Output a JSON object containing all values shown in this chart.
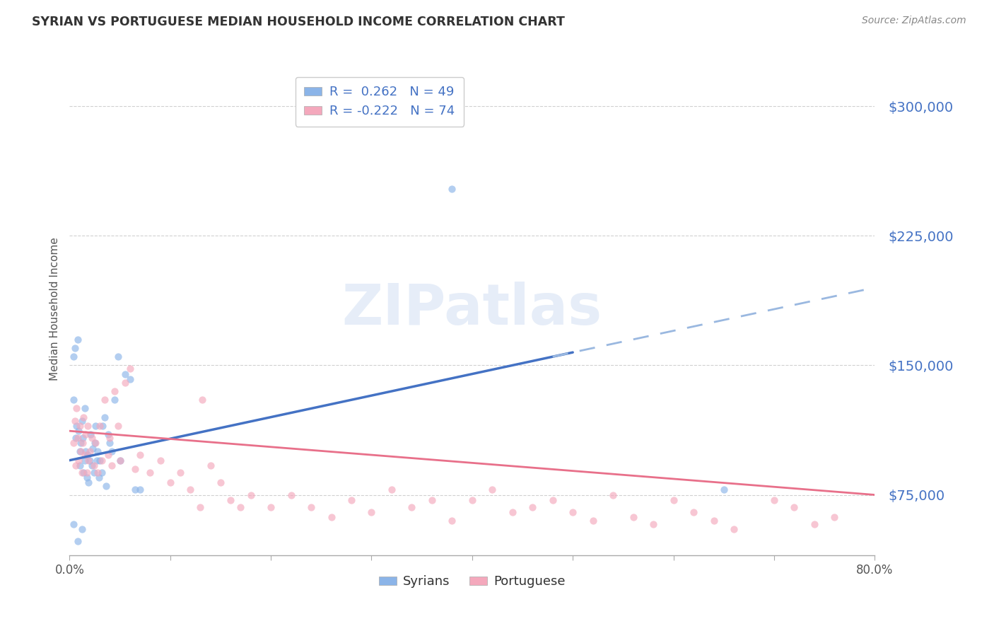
{
  "title": "SYRIAN VS PORTUGUESE MEDIAN HOUSEHOLD INCOME CORRELATION CHART",
  "source": "Source: ZipAtlas.com",
  "ylabel": "Median Household Income",
  "xlim": [
    0.0,
    0.8
  ],
  "ylim": [
    40000,
    325000
  ],
  "yticks": [
    75000,
    150000,
    225000,
    300000
  ],
  "ytick_labels": [
    "$75,000",
    "$150,000",
    "$225,000",
    "$300,000"
  ],
  "xticks": [
    0.0,
    0.1,
    0.2,
    0.3,
    0.4,
    0.5,
    0.6,
    0.7,
    0.8
  ],
  "background_color": "#ffffff",
  "grid_color": "#cccccc",
  "watermark": "ZIPatlas",
  "watermark_color": "#c8d8f0",
  "syrians_color": "#8bb4e8",
  "portuguese_color": "#f4a8bc",
  "syrian_line_color": "#4472c4",
  "portuguese_line_color": "#e8708a",
  "dashed_line_color": "#9ab8e0",
  "legend_syrian_label": "R =  0.262   N = 49",
  "legend_portuguese_label": "R = -0.222   N = 74",
  "legend_bottom_syrian": "Syrians",
  "legend_bottom_portuguese": "Portuguese",
  "title_color": "#333333",
  "tick_label_color": "#4472c4",
  "dot_size": 55,
  "dot_alpha": 0.65,
  "syrian_trend_x0": 0.0,
  "syrian_trend_y0": 95000,
  "syrian_trend_x1": 0.8,
  "syrian_trend_y1": 195000,
  "portuguese_trend_x0": 0.0,
  "portuguese_trend_y0": 112000,
  "portuguese_trend_x1": 0.8,
  "portuguese_trend_y1": 75000,
  "syrians_x": [
    0.004,
    0.004,
    0.005,
    0.006,
    0.007,
    0.008,
    0.009,
    0.01,
    0.01,
    0.011,
    0.012,
    0.013,
    0.014,
    0.015,
    0.015,
    0.016,
    0.017,
    0.018,
    0.019,
    0.02,
    0.021,
    0.022,
    0.023,
    0.024,
    0.025,
    0.026,
    0.027,
    0.028,
    0.029,
    0.03,
    0.032,
    0.033,
    0.035,
    0.036,
    0.038,
    0.04,
    0.042,
    0.045,
    0.048,
    0.05,
    0.055,
    0.06,
    0.065,
    0.07,
    0.004,
    0.008,
    0.012,
    0.38,
    0.65
  ],
  "syrians_y": [
    155000,
    130000,
    160000,
    108000,
    115000,
    165000,
    112000,
    100000,
    92000,
    105000,
    118000,
    108000,
    88000,
    125000,
    95000,
    100000,
    85000,
    98000,
    82000,
    95000,
    110000,
    92000,
    102000,
    88000,
    105000,
    115000,
    95000,
    100000,
    85000,
    95000,
    88000,
    115000,
    120000,
    80000,
    110000,
    105000,
    100000,
    130000,
    155000,
    95000,
    145000,
    142000,
    78000,
    78000,
    58000,
    48000,
    55000,
    252000,
    78000
  ],
  "portuguese_x": [
    0.004,
    0.005,
    0.006,
    0.007,
    0.008,
    0.009,
    0.01,
    0.011,
    0.012,
    0.013,
    0.014,
    0.015,
    0.016,
    0.017,
    0.018,
    0.019,
    0.02,
    0.022,
    0.024,
    0.026,
    0.028,
    0.03,
    0.032,
    0.035,
    0.038,
    0.04,
    0.042,
    0.045,
    0.048,
    0.05,
    0.055,
    0.06,
    0.065,
    0.07,
    0.08,
    0.09,
    0.1,
    0.11,
    0.12,
    0.13,
    0.14,
    0.15,
    0.16,
    0.17,
    0.18,
    0.2,
    0.22,
    0.24,
    0.26,
    0.28,
    0.3,
    0.32,
    0.34,
    0.36,
    0.38,
    0.4,
    0.42,
    0.44,
    0.46,
    0.48,
    0.5,
    0.52,
    0.54,
    0.56,
    0.58,
    0.6,
    0.62,
    0.64,
    0.66,
    0.7,
    0.72,
    0.74,
    0.76,
    0.132
  ],
  "portuguese_y": [
    105000,
    118000,
    92000,
    125000,
    108000,
    95000,
    115000,
    100000,
    88000,
    105000,
    120000,
    98000,
    110000,
    88000,
    115000,
    95000,
    100000,
    108000,
    92000,
    105000,
    88000,
    115000,
    95000,
    130000,
    98000,
    108000,
    92000,
    135000,
    115000,
    95000,
    140000,
    148000,
    90000,
    98000,
    88000,
    95000,
    82000,
    88000,
    78000,
    68000,
    92000,
    82000,
    72000,
    68000,
    75000,
    68000,
    75000,
    68000,
    62000,
    72000,
    65000,
    78000,
    68000,
    72000,
    60000,
    72000,
    78000,
    65000,
    68000,
    72000,
    65000,
    60000,
    75000,
    62000,
    58000,
    72000,
    65000,
    60000,
    55000,
    72000,
    68000,
    58000,
    62000,
    130000
  ]
}
